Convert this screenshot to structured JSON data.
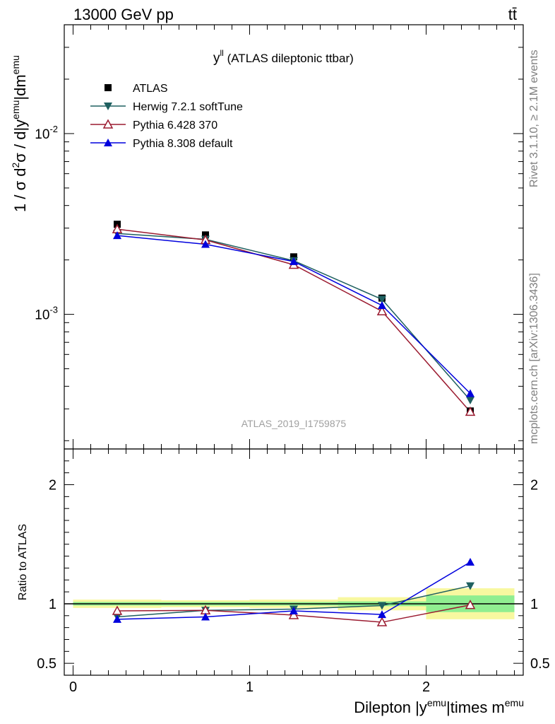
{
  "header": {
    "energy_label": "13000 GeV pp",
    "process_label": "tt̄"
  },
  "side_labels": {
    "rivet": "Rivet 3.1.10, ≥ 2.1M events",
    "mcplots": "mcplots.cern.ch [arXiv:1306.3436]"
  },
  "chart_data": [
    {
      "type": "line",
      "title": "y^{ll} (ATLAS dileptonic ttbar)",
      "title_main": "y",
      "title_sup": "ll",
      "title_rest": " (ATLAS dileptonic ttbar)",
      "watermark": "ATLAS_2019_I1759875",
      "ylabel": "1 / σ d²σ / d|y^emu|dm^emu",
      "yscale": "log",
      "ylim": [
        0.00018,
        0.04
      ],
      "xlim": [
        -0.05,
        2.55
      ],
      "yticks": [
        {
          "value": 0.01,
          "label": "10^-2"
        },
        {
          "value": 0.001,
          "label": "10^-3"
        }
      ],
      "legend_position": "top-left",
      "series": [
        {
          "name": "ATLAS",
          "color": "#000000",
          "marker": "square",
          "x": [
            0.25,
            0.75,
            1.25,
            1.75,
            2.25
          ],
          "y": [
            0.00315,
            0.00275,
            0.00208,
            0.00123,
            0.000292
          ]
        },
        {
          "name": "Herwig 7.2.1 softTune",
          "color": "#1f6060",
          "marker": "triangle-down",
          "x": [
            0.25,
            0.75,
            1.25,
            1.75,
            2.25
          ],
          "y": [
            0.0028,
            0.0026,
            0.00198,
            0.00121,
            0.000335
          ]
        },
        {
          "name": "Pythia 6.428 370",
          "color": "#9b1b30",
          "marker": "triangle-up-open",
          "x": [
            0.25,
            0.75,
            1.25,
            1.75,
            2.25
          ],
          "y": [
            0.00296,
            0.00258,
            0.00188,
            0.00104,
            0.000289
          ]
        },
        {
          "name": "Pythia 8.308 default",
          "color": "#0000dd",
          "marker": "triangle-up",
          "x": [
            0.25,
            0.75,
            1.25,
            1.75,
            2.25
          ],
          "y": [
            0.00273,
            0.00244,
            0.00196,
            0.00112,
            0.000365
          ]
        }
      ]
    },
    {
      "type": "line",
      "ylabel": "Ratio to ATLAS",
      "xlabel": "Dilepton |y^emu|times m^emu",
      "ylim": [
        0.4,
        2.3
      ],
      "xlim": [
        -0.05,
        2.55
      ],
      "yticks": [
        {
          "value": 2,
          "label": "2"
        },
        {
          "value": 1,
          "label": "1"
        },
        {
          "value": 0.5,
          "label": "0.5"
        }
      ],
      "xticks": [
        {
          "value": 0,
          "label": "0"
        },
        {
          "value": 1,
          "label": "1"
        },
        {
          "value": 2,
          "label": "2"
        }
      ],
      "bands": [
        {
          "x0": 0.0,
          "x1": 0.5,
          "stat": [
            0.985,
            1.015
          ],
          "total": [
            0.965,
            1.035
          ]
        },
        {
          "x0": 0.5,
          "x1": 1.0,
          "stat": [
            0.985,
            1.015
          ],
          "total": [
            0.97,
            1.03
          ]
        },
        {
          "x0": 1.0,
          "x1": 1.5,
          "stat": [
            0.985,
            1.015
          ],
          "total": [
            0.965,
            1.035
          ]
        },
        {
          "x0": 1.5,
          "x1": 2.0,
          "stat": [
            0.98,
            1.02
          ],
          "total": [
            0.945,
            1.055
          ]
        },
        {
          "x0": 2.0,
          "x1": 2.5,
          "stat": [
            0.93,
            1.07
          ],
          "total": [
            0.87,
            1.13
          ]
        }
      ],
      "series": [
        {
          "name": "Herwig 7.2.1 softTune",
          "color": "#1f6060",
          "marker": "triangle-down",
          "x": [
            0.25,
            0.75,
            1.25,
            1.75,
            2.25
          ],
          "y": [
            0.89,
            0.945,
            0.955,
            0.985,
            1.15
          ]
        },
        {
          "name": "Pythia 6.428 370",
          "color": "#9b1b30",
          "marker": "triangle-up-open",
          "x": [
            0.25,
            0.75,
            1.25,
            1.75,
            2.25
          ],
          "y": [
            0.94,
            0.945,
            0.905,
            0.845,
            0.99
          ]
        },
        {
          "name": "Pythia 8.308 default",
          "color": "#0000dd",
          "marker": "triangle-up",
          "x": [
            0.25,
            0.75,
            1.25,
            1.75,
            2.25
          ],
          "y": [
            0.87,
            0.89,
            0.94,
            0.91,
            1.35
          ]
        }
      ]
    }
  ]
}
